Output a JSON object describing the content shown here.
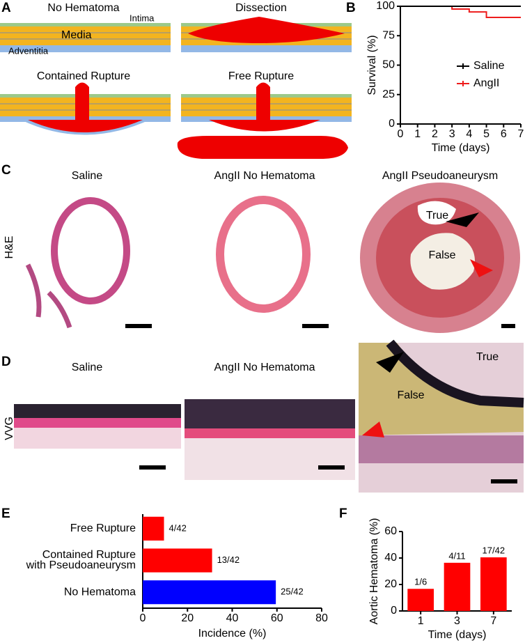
{
  "panels": {
    "labels": [
      "A",
      "B",
      "C",
      "D",
      "E",
      "F"
    ]
  },
  "diagram": {
    "titles": [
      "No Hematoma",
      "Dissection",
      "Contained Rupture",
      "Free Rupture"
    ],
    "layers": [
      "Intima",
      "Media",
      "Adventitia"
    ]
  },
  "histology": {
    "columns": [
      "Saline",
      "AngII No Hematoma",
      "AngII Pseudoaneurysm"
    ],
    "stains": [
      "H&E",
      "VVG"
    ],
    "he_labels": [
      "True",
      "False"
    ],
    "vvg_labels": [
      "True",
      "False"
    ]
  },
  "chart_data": [
    {
      "type": "line",
      "xlabel": "Time (days)",
      "ylabel": "Survival (%)",
      "x": [
        0,
        1,
        2,
        3,
        4,
        5,
        6,
        7
      ],
      "series": [
        {
          "name": "Saline",
          "color": "#000000",
          "values": [
            100,
            100,
            100,
            100,
            100,
            100,
            100,
            100
          ]
        },
        {
          "name": "AngII",
          "color": "#ee1c1c",
          "values": [
            100,
            100,
            100,
            97.6,
            95.2,
            90.5,
            90.5,
            90.5
          ]
        }
      ],
      "xlim": [
        0,
        7
      ],
      "xticks": [
        0,
        1,
        2,
        3,
        4,
        5,
        6,
        7
      ],
      "ylim": [
        0,
        100
      ],
      "yticks": [
        0,
        25,
        50,
        75,
        100
      ],
      "legend": "right"
    },
    {
      "type": "bar",
      "orientation": "horizontal",
      "xlabel": "Incidence (%)",
      "categories": [
        "Free Rupture",
        "Contained Rupture\nwith Pseudoaneurysm",
        "No Hematoma"
      ],
      "values": [
        9.5,
        31,
        59.5
      ],
      "value_labels": [
        "4/42",
        "13/42",
        "25/42"
      ],
      "colors": [
        "#ff0000",
        "#ff0000",
        "#0000ff"
      ],
      "xlim": [
        0,
        80
      ],
      "xticks": [
        0,
        20,
        40,
        60,
        80
      ]
    },
    {
      "type": "bar",
      "orientation": "vertical",
      "xlabel": "Time (days)",
      "ylabel": "Aortic Hematoma (%)",
      "categories": [
        "1",
        "3",
        "7"
      ],
      "values": [
        16.7,
        36.4,
        40.5
      ],
      "value_labels": [
        "1/6",
        "4/11",
        "17/42"
      ],
      "color": "#ff0000",
      "ylim": [
        0,
        60
      ],
      "yticks": [
        0,
        20,
        40,
        60
      ]
    }
  ]
}
